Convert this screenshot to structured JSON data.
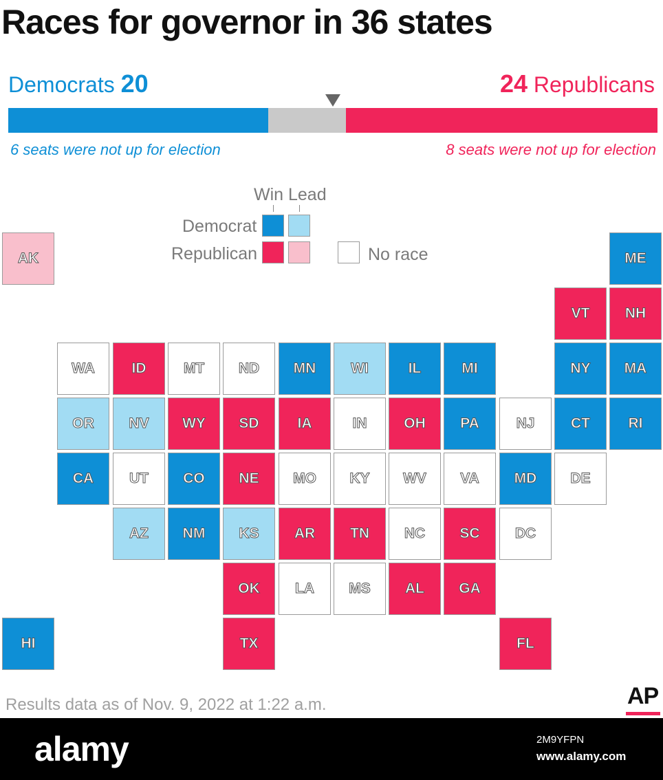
{
  "title": "Races for governor in 36 states",
  "summary": {
    "dem_label": "Democrats",
    "dem_count": "20",
    "rep_label": "Republicans",
    "rep_count": "24",
    "dem_note": "6 seats were not up for election",
    "rep_note": "8 seats were not up for election",
    "bar": {
      "dem_share": 0.4,
      "undecided_share": 0.12,
      "rep_share": 0.48,
      "majority_share": 0.5
    }
  },
  "legend": {
    "win": "Win",
    "lead": "Lead",
    "democrat": "Democrat",
    "republican": "Republican",
    "no_race": "No race"
  },
  "colors": {
    "dem_win": "#0e8fd6",
    "dem_lead": "#a2dcf3",
    "rep_win": "#f0245a",
    "rep_lead": "#f9bfcc",
    "no_race": "#ffffff",
    "undecided": "#c9c9c9",
    "border": "#9a9a9a"
  },
  "map": {
    "states": [
      {
        "abbr": "AK",
        "status": "rep_lead",
        "col": 0,
        "row": 0
      },
      {
        "abbr": "ME",
        "status": "dem_win",
        "col": 11,
        "row": 0
      },
      {
        "abbr": "VT",
        "status": "rep_win",
        "col": 10,
        "row": 1
      },
      {
        "abbr": "NH",
        "status": "rep_win",
        "col": 11,
        "row": 1
      },
      {
        "abbr": "WA",
        "status": "no_race",
        "col": 1,
        "row": 2
      },
      {
        "abbr": "ID",
        "status": "rep_win",
        "col": 2,
        "row": 2
      },
      {
        "abbr": "MT",
        "status": "no_race",
        "col": 3,
        "row": 2
      },
      {
        "abbr": "ND",
        "status": "no_race",
        "col": 4,
        "row": 2
      },
      {
        "abbr": "MN",
        "status": "dem_win",
        "col": 5,
        "row": 2
      },
      {
        "abbr": "WI",
        "status": "dem_lead",
        "col": 6,
        "row": 2
      },
      {
        "abbr": "IL",
        "status": "dem_win",
        "col": 7,
        "row": 2
      },
      {
        "abbr": "MI",
        "status": "dem_win",
        "col": 8,
        "row": 2
      },
      {
        "abbr": "NY",
        "status": "dem_win",
        "col": 10,
        "row": 2
      },
      {
        "abbr": "MA",
        "status": "dem_win",
        "col": 11,
        "row": 2
      },
      {
        "abbr": "OR",
        "status": "dem_lead",
        "col": 1,
        "row": 3
      },
      {
        "abbr": "NV",
        "status": "dem_lead",
        "col": 2,
        "row": 3
      },
      {
        "abbr": "WY",
        "status": "rep_win",
        "col": 3,
        "row": 3
      },
      {
        "abbr": "SD",
        "status": "rep_win",
        "col": 4,
        "row": 3
      },
      {
        "abbr": "IA",
        "status": "rep_win",
        "col": 5,
        "row": 3
      },
      {
        "abbr": "IN",
        "status": "no_race",
        "col": 6,
        "row": 3
      },
      {
        "abbr": "OH",
        "status": "rep_win",
        "col": 7,
        "row": 3
      },
      {
        "abbr": "PA",
        "status": "dem_win",
        "col": 8,
        "row": 3
      },
      {
        "abbr": "NJ",
        "status": "no_race",
        "col": 9,
        "row": 3
      },
      {
        "abbr": "CT",
        "status": "dem_win",
        "col": 10,
        "row": 3
      },
      {
        "abbr": "RI",
        "status": "dem_win",
        "col": 11,
        "row": 3
      },
      {
        "abbr": "CA",
        "status": "dem_win",
        "col": 1,
        "row": 4
      },
      {
        "abbr": "UT",
        "status": "no_race",
        "col": 2,
        "row": 4
      },
      {
        "abbr": "CO",
        "status": "dem_win",
        "col": 3,
        "row": 4
      },
      {
        "abbr": "NE",
        "status": "rep_win",
        "col": 4,
        "row": 4
      },
      {
        "abbr": "MO",
        "status": "no_race",
        "col": 5,
        "row": 4
      },
      {
        "abbr": "KY",
        "status": "no_race",
        "col": 6,
        "row": 4
      },
      {
        "abbr": "WV",
        "status": "no_race",
        "col": 7,
        "row": 4
      },
      {
        "abbr": "VA",
        "status": "no_race",
        "col": 8,
        "row": 4
      },
      {
        "abbr": "MD",
        "status": "dem_win",
        "col": 9,
        "row": 4
      },
      {
        "abbr": "DE",
        "status": "no_race",
        "col": 10,
        "row": 4
      },
      {
        "abbr": "AZ",
        "status": "dem_lead",
        "col": 2,
        "row": 5
      },
      {
        "abbr": "NM",
        "status": "dem_win",
        "col": 3,
        "row": 5
      },
      {
        "abbr": "KS",
        "status": "dem_lead",
        "col": 4,
        "row": 5
      },
      {
        "abbr": "AR",
        "status": "rep_win",
        "col": 5,
        "row": 5
      },
      {
        "abbr": "TN",
        "status": "rep_win",
        "col": 6,
        "row": 5
      },
      {
        "abbr": "NC",
        "status": "no_race",
        "col": 7,
        "row": 5
      },
      {
        "abbr": "SC",
        "status": "rep_win",
        "col": 8,
        "row": 5
      },
      {
        "abbr": "DC",
        "status": "no_race",
        "col": 9,
        "row": 5
      },
      {
        "abbr": "OK",
        "status": "rep_win",
        "col": 4,
        "row": 6
      },
      {
        "abbr": "LA",
        "status": "no_race",
        "col": 5,
        "row": 6
      },
      {
        "abbr": "MS",
        "status": "no_race",
        "col": 6,
        "row": 6
      },
      {
        "abbr": "AL",
        "status": "rep_win",
        "col": 7,
        "row": 6
      },
      {
        "abbr": "GA",
        "status": "rep_win",
        "col": 8,
        "row": 6
      },
      {
        "abbr": "HI",
        "status": "dem_win",
        "col": 0,
        "row": 7
      },
      {
        "abbr": "TX",
        "status": "rep_win",
        "col": 4,
        "row": 7
      },
      {
        "abbr": "FL",
        "status": "rep_win",
        "col": 9,
        "row": 7
      }
    ]
  },
  "footer": {
    "source": "Results data as of Nov. 9, 2022 at 1:22 a.m.",
    "logo": "AP"
  },
  "watermark": {
    "brand": "alamy",
    "image_id": "2M9YFPN",
    "url": "www.alamy.com"
  }
}
